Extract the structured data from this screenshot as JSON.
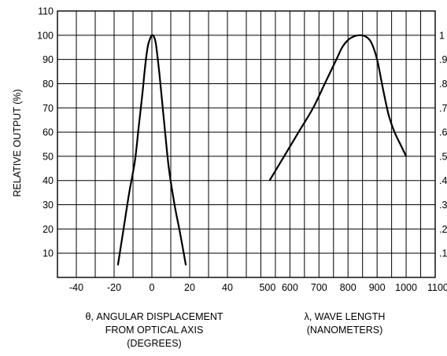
{
  "chart_data": [
    {
      "type": "line",
      "ylabel": "RELATIVE OUTPUT (%)",
      "xlabel_lines": [
        "θ, ANGULAR DISPLACEMENT",
        "FROM OPTICAL AXIS",
        "(DEGREES)"
      ],
      "x_ticks": [
        "-40",
        "-20",
        "0",
        "20",
        "40"
      ],
      "x_tick_values": [
        -40,
        -20,
        0,
        20,
        40
      ],
      "y_ticks": [
        "10",
        "20",
        "30",
        "40",
        "50",
        "60",
        "70",
        "80",
        "90",
        "100",
        "110"
      ],
      "y_tick_values": [
        10,
        20,
        30,
        40,
        50,
        60,
        70,
        80,
        90,
        100,
        110
      ],
      "xlim": [
        -50,
        50
      ],
      "ylim": [
        0,
        110
      ],
      "grid": true,
      "series": [
        {
          "x": [
            -18,
            -15,
            -12,
            -9,
            -7,
            -5,
            -4,
            -3,
            -2,
            -1,
            0,
            1,
            2,
            3,
            4,
            5,
            7,
            9,
            12,
            15,
            18
          ],
          "y": [
            5,
            20,
            35,
            48,
            62,
            76,
            84,
            91,
            96,
            98.5,
            100,
            99.5,
            97,
            91,
            84,
            76,
            60,
            45,
            30,
            18,
            5
          ]
        }
      ]
    },
    {
      "type": "line",
      "xlabel_lines": [
        "λ, WAVE LENGTH",
        "(NANOMETERS)"
      ],
      "x_ticks": [
        "500",
        "600",
        "700",
        "800",
        "900",
        "1000",
        "1100"
      ],
      "x_tick_values": [
        500,
        600,
        700,
        800,
        900,
        1000,
        1100
      ],
      "y2_ticks": [
        ".1",
        ".2",
        ".3",
        ".4",
        ".5",
        ".6",
        ".7",
        ".8",
        ".9",
        "1"
      ],
      "y2_tick_values": [
        0.1,
        0.2,
        0.3,
        0.4,
        0.5,
        0.6,
        0.7,
        0.8,
        0.9,
        1.0
      ],
      "xlim": [
        450,
        1100
      ],
      "ylim": [
        0,
        1.1
      ],
      "grid": true,
      "series": [
        {
          "x": [
            530,
            580,
            630,
            680,
            720,
            760,
            780,
            800,
            820,
            840,
            860,
            880,
            900,
            920,
            940,
            960,
            980,
            1000
          ],
          "y": [
            0.4,
            0.5,
            0.6,
            0.7,
            0.8,
            0.9,
            0.95,
            0.98,
            0.995,
            1.0,
            0.995,
            0.97,
            0.9,
            0.78,
            0.67,
            0.6,
            0.55,
            0.5
          ]
        }
      ]
    }
  ]
}
